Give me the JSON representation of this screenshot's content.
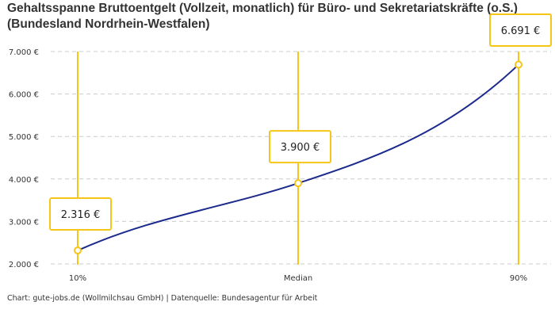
{
  "chart_data": {
    "type": "line",
    "title": "Gehaltsspanne Bruttoentgelt (Vollzeit, monatlich) für Büro- und Sekretariatskräfte (o.S.) (Bundesland Nordrhein-Westfalen)",
    "categories": [
      "10%",
      "Median",
      "90%"
    ],
    "values": [
      2316,
      3900,
      6691
    ],
    "data_labels": [
      "2.316 €",
      "3.900 €",
      "6.691 €"
    ],
    "ylim": [
      2000,
      7000
    ],
    "yticks": [
      2000,
      3000,
      4000,
      5000,
      6000,
      7000
    ],
    "ytick_labels": [
      "2.000 €",
      "3.000 €",
      "4.000 €",
      "5.000 €",
      "6.000 €",
      "7.000 €"
    ],
    "grid": true,
    "colors": {
      "line": "#1b2a8c",
      "marker": "#f5c518",
      "grid": "#cccccc"
    }
  },
  "credit": "Chart: gute-jobs.de (Wollmilchsau GmbH) | Datenquelle: Bundesagentur für Arbeit"
}
